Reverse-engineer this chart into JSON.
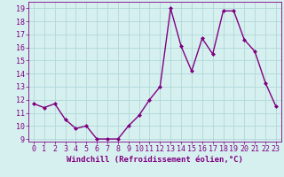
{
  "x": [
    0,
    1,
    2,
    3,
    4,
    5,
    6,
    7,
    8,
    9,
    10,
    11,
    12,
    13,
    14,
    15,
    16,
    17,
    18,
    19,
    20,
    21,
    22,
    23
  ],
  "y": [
    11.7,
    11.4,
    11.7,
    10.5,
    9.8,
    10.0,
    9.0,
    9.0,
    9.0,
    10.0,
    10.8,
    12.0,
    13.0,
    19.0,
    16.1,
    14.2,
    16.7,
    15.5,
    18.8,
    18.8,
    16.6,
    15.7,
    13.3,
    11.5
  ],
  "line_color": "#800080",
  "marker": "D",
  "marker_size": 2.0,
  "bg_color": "#d6f0f0",
  "grid_color": "#b0d8d8",
  "xlabel": "Windchill (Refroidissement éolien,°C)",
  "ylim": [
    8.8,
    19.5
  ],
  "xlim": [
    -0.5,
    23.5
  ],
  "yticks": [
    9,
    10,
    11,
    12,
    13,
    14,
    15,
    16,
    17,
    18,
    19
  ],
  "xticks": [
    0,
    1,
    2,
    3,
    4,
    5,
    6,
    7,
    8,
    9,
    10,
    11,
    12,
    13,
    14,
    15,
    16,
    17,
    18,
    19,
    20,
    21,
    22,
    23
  ],
  "xlabel_fontsize": 6.5,
  "tick_fontsize": 6.0,
  "line_width": 1.0
}
